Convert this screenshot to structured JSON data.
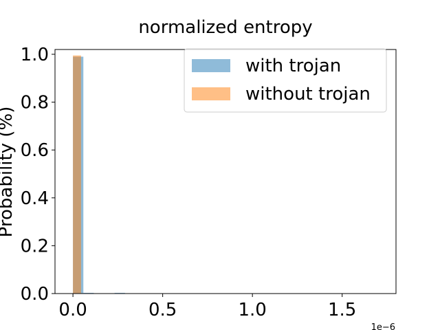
{
  "chart_data": {
    "type": "bar",
    "title": "normalized entropy",
    "xlabel": "",
    "ylabel": "Probability (%)",
    "x_offset_label": "1e−6",
    "xlim": [
      -0.1,
      1.8
    ],
    "ylim": [
      0.0,
      1.02
    ],
    "x_ticks": [
      0.0,
      0.5,
      1.0,
      1.5
    ],
    "x_tick_labels": [
      "0.0",
      "0.5",
      "1.0",
      "1.5"
    ],
    "y_ticks": [
      0.0,
      0.2,
      0.4,
      0.6,
      0.8,
      1.0
    ],
    "y_tick_labels": [
      "0.0",
      "0.2",
      "0.4",
      "0.6",
      "0.8",
      "1.0"
    ],
    "grid": false,
    "legend_position": "top-right",
    "series": [
      {
        "name": "with trojan",
        "color": "#1f77b4",
        "opacity": 0.5,
        "bins": [
          {
            "x0": 0.0,
            "x1": 0.058,
            "value": 0.99
          },
          {
            "x0": 0.058,
            "x1": 0.116,
            "value": 0.003
          },
          {
            "x0": 0.232,
            "x1": 0.29,
            "value": 0.003
          }
        ]
      },
      {
        "name": "without trojan",
        "color": "#ff7f0e",
        "opacity": 0.5,
        "bins": [
          {
            "x0": 0.0,
            "x1": 0.045,
            "value": 0.995
          }
        ]
      }
    ]
  }
}
